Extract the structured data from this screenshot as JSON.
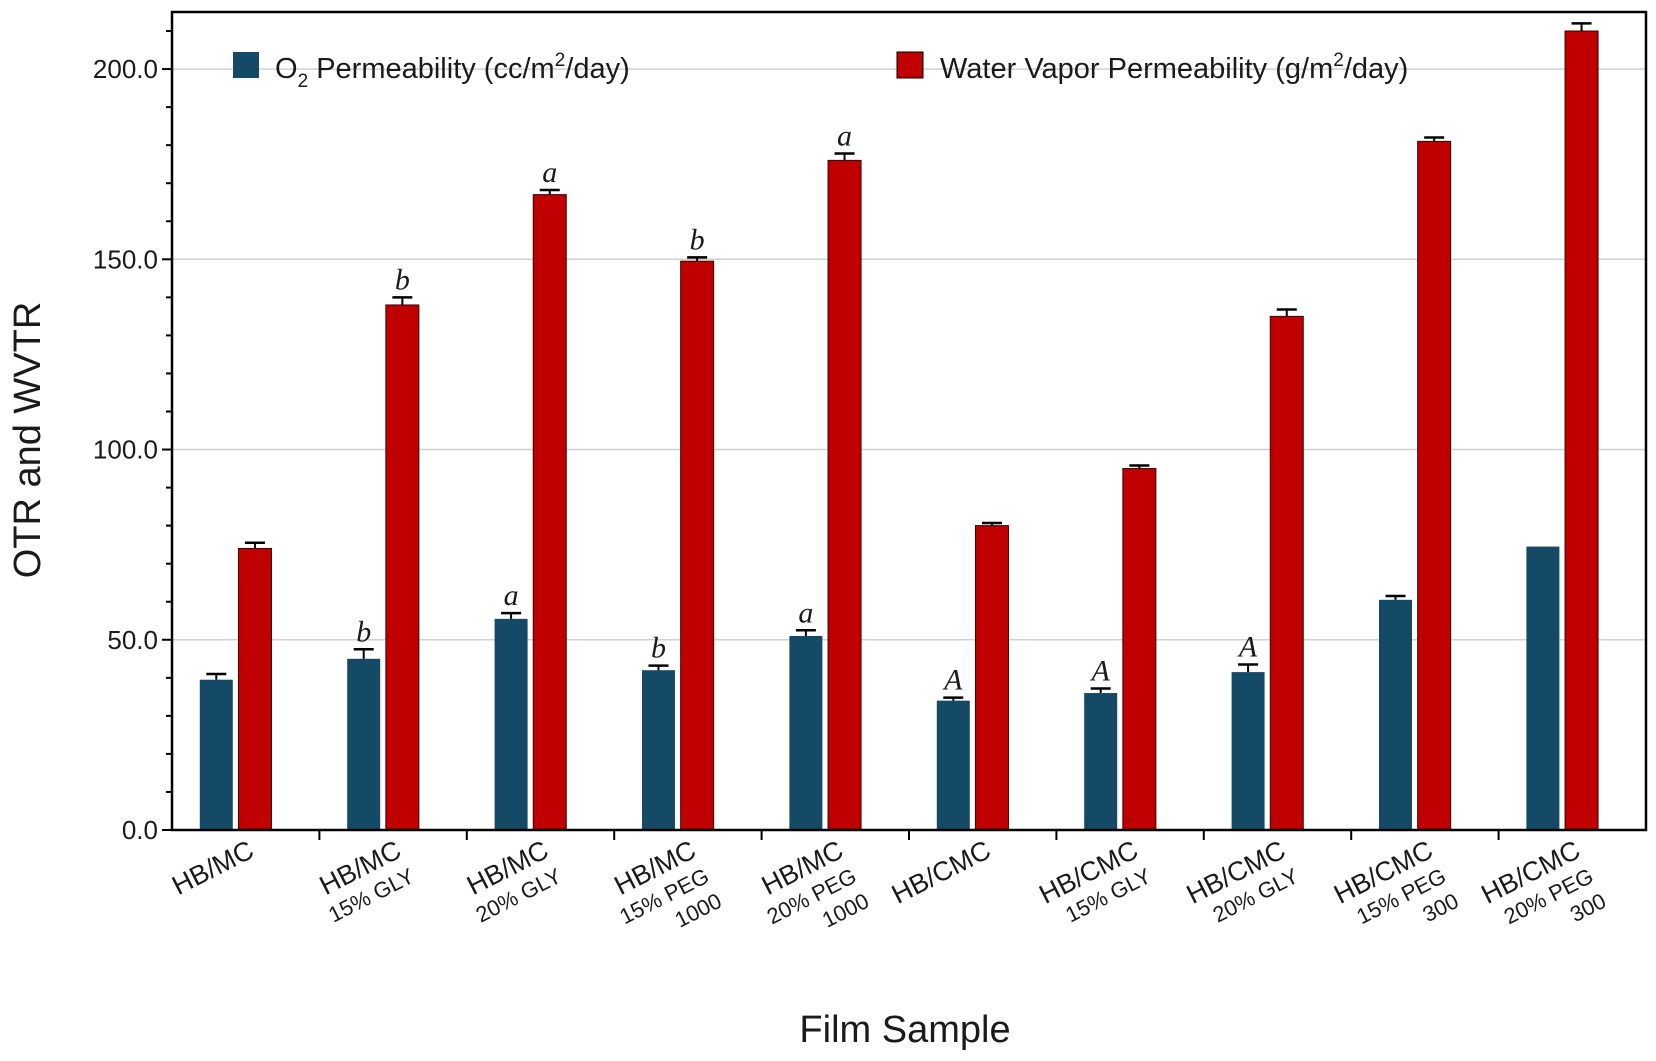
{
  "chart_data": {
    "type": "bar",
    "title": "",
    "xlabel": "Film Sample",
    "ylabel": "OTR and WVTR",
    "ylim": [
      0,
      215
    ],
    "yticks": [
      "0.0",
      "50.0",
      "100.0",
      "150.0",
      "200.0"
    ],
    "ytick_values": [
      0,
      50,
      100,
      150,
      200
    ],
    "grid": true,
    "legend_position": "top",
    "categories": [
      {
        "main": "HB/MC",
        "sub": []
      },
      {
        "main": "HB/MC",
        "sub": [
          "15% GLY"
        ]
      },
      {
        "main": "HB/MC",
        "sub": [
          "20% GLY"
        ]
      },
      {
        "main": "HB/MC",
        "sub": [
          "15% PEG",
          "1000"
        ]
      },
      {
        "main": "HB/MC",
        "sub": [
          "20% PEG",
          "1000"
        ]
      },
      {
        "main": "HB/CMC",
        "sub": []
      },
      {
        "main": "HB/CMC",
        "sub": [
          "15% GLY"
        ]
      },
      {
        "main": "HB/CMC",
        "sub": [
          "20% GLY"
        ]
      },
      {
        "main": "HB/CMC",
        "sub": [
          "15% PEG",
          "300"
        ]
      },
      {
        "main": "HB/CMC",
        "sub": [
          "20% PEG",
          "300"
        ]
      }
    ],
    "series": [
      {
        "name": "O2 Permeability (cc/m2/day)",
        "legend_parts": {
          "a": "O",
          "sub": "2",
          "b": " Permeability (cc/m",
          "sup": "2",
          "c": "/day)"
        },
        "color": "#154a66",
        "values": [
          39.5,
          45,
          55.5,
          42,
          51,
          34,
          36,
          41.5,
          60.5,
          74.5
        ],
        "errors": [
          1.5,
          2.5,
          1.5,
          1.2,
          1.5,
          0.8,
          1.2,
          2.0,
          1.0,
          0
        ],
        "labels": [
          "",
          "b",
          "a",
          "b",
          "a",
          "A",
          "A",
          "A",
          "",
          ""
        ]
      },
      {
        "name": "Water Vapor Permeability (g/m2/day)",
        "legend_parts": {
          "a": "Water Vapor Permeability (g/m",
          "sup": "2",
          "b": "/day)"
        },
        "color": "#c00000",
        "values": [
          74,
          138,
          167,
          149.5,
          176,
          80,
          95,
          135,
          181,
          210
        ],
        "errors": [
          1.5,
          2.0,
          1.2,
          1.0,
          1.8,
          0.7,
          0.8,
          1.8,
          1.0,
          2.0
        ],
        "labels": [
          "",
          "b",
          "a",
          "b",
          "a",
          "",
          "",
          "",
          "",
          ""
        ]
      }
    ]
  }
}
